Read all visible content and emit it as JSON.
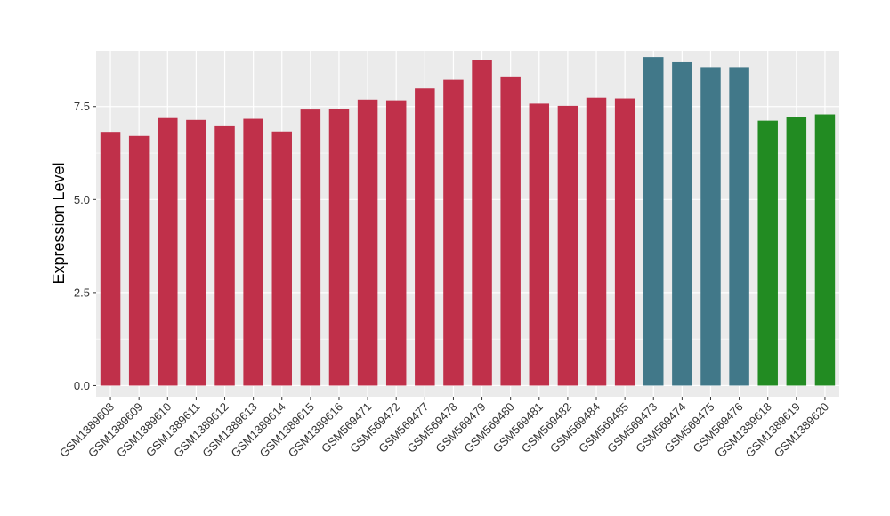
{
  "chart_data": {
    "type": "bar",
    "title": "",
    "xlabel": "",
    "ylabel": "Expression Level",
    "ylim": [
      -0.3,
      9.0
    ],
    "yticks": [
      0.0,
      2.5,
      5.0,
      7.5
    ],
    "ytick_labels": [
      "0.0",
      "2.5",
      "5.0",
      "7.5"
    ],
    "grid": true,
    "legend": "none",
    "categories": [
      "GSM1389608",
      "GSM1389609",
      "GSM1389610",
      "GSM1389611",
      "GSM1389612",
      "GSM1389613",
      "GSM1389614",
      "GSM1389615",
      "GSM1389616",
      "GSM569471",
      "GSM569472",
      "GSM569477",
      "GSM569478",
      "GSM569479",
      "GSM569480",
      "GSM569481",
      "GSM569482",
      "GSM569484",
      "GSM569485",
      "GSM569473",
      "GSM569474",
      "GSM569475",
      "GSM569476",
      "GSM1389618",
      "GSM1389619",
      "GSM1389620"
    ],
    "values": [
      6.82,
      6.71,
      7.19,
      7.14,
      6.97,
      7.17,
      6.83,
      7.42,
      7.44,
      7.69,
      7.67,
      7.99,
      8.22,
      8.75,
      8.31,
      7.58,
      7.52,
      7.74,
      7.72,
      8.83,
      8.69,
      8.56,
      8.56,
      7.12,
      7.22,
      7.29
    ],
    "colors": [
      "#C0304A",
      "#C0304A",
      "#C0304A",
      "#C0304A",
      "#C0304A",
      "#C0304A",
      "#C0304A",
      "#C0304A",
      "#C0304A",
      "#C0304A",
      "#C0304A",
      "#C0304A",
      "#C0304A",
      "#C0304A",
      "#C0304A",
      "#C0304A",
      "#C0304A",
      "#C0304A",
      "#C0304A",
      "#417889",
      "#417889",
      "#417889",
      "#417889",
      "#228B22",
      "#228B22",
      "#228B22"
    ],
    "panel_background": "#EBEBEB",
    "grid_color": "#FFFFFF"
  }
}
